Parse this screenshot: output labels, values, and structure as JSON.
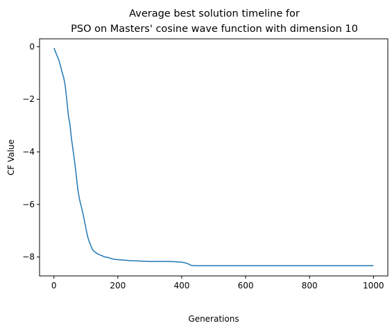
{
  "chart_data": {
    "type": "line",
    "title": {
      "line1": "Average best solution timeline for",
      "line2": "PSO on Masters' cosine wave function with dimension 10"
    },
    "xlabel": "Generations",
    "ylabel": "CF Value",
    "xlim": [
      -45,
      1045
    ],
    "ylim": [
      -8.72,
      0.3
    ],
    "x_ticks": [
      0,
      200,
      400,
      600,
      800,
      1000
    ],
    "x_tick_labels": [
      "0",
      "200",
      "400",
      "600",
      "800",
      "1000"
    ],
    "y_ticks": [
      0,
      -2,
      -4,
      -6,
      -8
    ],
    "y_tick_labels": [
      "0",
      "−2",
      "−4",
      "−6",
      "−8"
    ],
    "grid": false,
    "legend": "none",
    "colors": {
      "line": "#1f77b4",
      "axes": "#000000",
      "background": "#ffffff"
    },
    "series": [
      {
        "x": [
          0,
          5,
          10,
          15,
          20,
          25,
          30,
          35,
          40,
          45,
          50,
          55,
          60,
          65,
          70,
          75,
          80,
          85,
          90,
          95,
          100,
          105,
          110,
          115,
          120,
          125,
          130,
          135,
          140,
          150,
          160,
          170,
          180,
          190,
          200,
          210,
          220,
          240,
          260,
          280,
          300,
          320,
          350,
          380,
          400,
          410,
          420,
          430,
          440,
          500,
          600,
          700,
          800,
          900,
          1000
        ],
        "y": [
          -0.05,
          -0.2,
          -0.35,
          -0.5,
          -0.7,
          -0.95,
          -1.15,
          -1.45,
          -2.0,
          -2.6,
          -2.95,
          -3.5,
          -3.95,
          -4.4,
          -4.9,
          -5.45,
          -5.8,
          -6.05,
          -6.3,
          -6.6,
          -6.9,
          -7.2,
          -7.4,
          -7.55,
          -7.7,
          -7.78,
          -7.82,
          -7.87,
          -7.9,
          -7.95,
          -8.0,
          -8.02,
          -8.06,
          -8.09,
          -8.1,
          -8.11,
          -8.12,
          -8.14,
          -8.15,
          -8.16,
          -8.17,
          -8.17,
          -8.17,
          -8.18,
          -8.2,
          -8.22,
          -8.26,
          -8.32,
          -8.33,
          -8.33,
          -8.33,
          -8.33,
          -8.33,
          -8.33,
          -8.33
        ]
      }
    ]
  }
}
